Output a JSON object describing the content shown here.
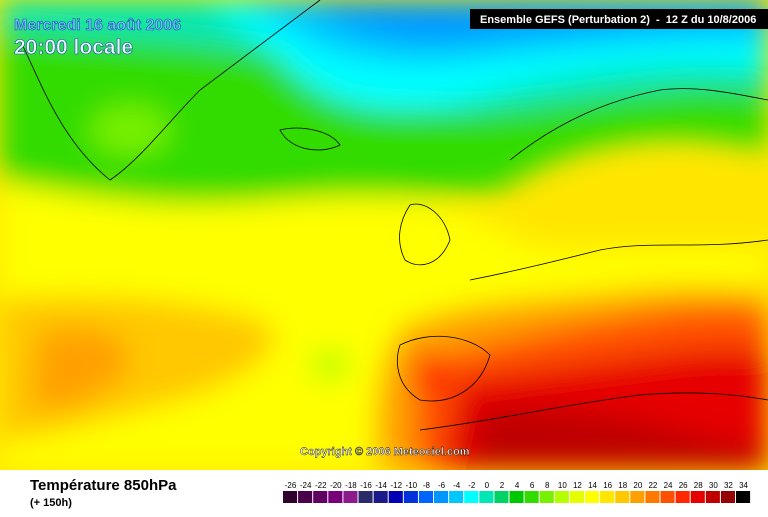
{
  "header": {
    "date": "Mercredi 16 août 2006",
    "time": "20:00 locale",
    "run": "Ensemble GEFS (Perturbation 2)  -  12 Z du 10/8/2006"
  },
  "copyright": "Copyright © 2006 Meteociel.com",
  "footer": {
    "title": "Température 850hPa",
    "lead": "(+ 150h)"
  },
  "legend": {
    "values": [
      -26,
      -24,
      -22,
      -20,
      -18,
      -16,
      -14,
      -12,
      -10,
      -8,
      -6,
      -4,
      -2,
      0,
      2,
      4,
      6,
      8,
      10,
      12,
      14,
      16,
      18,
      20,
      22,
      24,
      26,
      28,
      30,
      32,
      34
    ],
    "colors": [
      "#30002f",
      "#4a004a",
      "#600060",
      "#780078",
      "#8c1a8c",
      "#2a2a6a",
      "#1a1a8a",
      "#0000b4",
      "#0032dc",
      "#0064ff",
      "#0096ff",
      "#00c8ff",
      "#00ffff",
      "#00e6b4",
      "#00d264",
      "#00c800",
      "#32dc00",
      "#78f000",
      "#b4ff00",
      "#e6ff00",
      "#ffff00",
      "#ffe600",
      "#ffc800",
      "#ffa000",
      "#ff7800",
      "#ff5000",
      "#ff2800",
      "#e60000",
      "#be0000",
      "#960000",
      "#000000"
    ]
  }
}
